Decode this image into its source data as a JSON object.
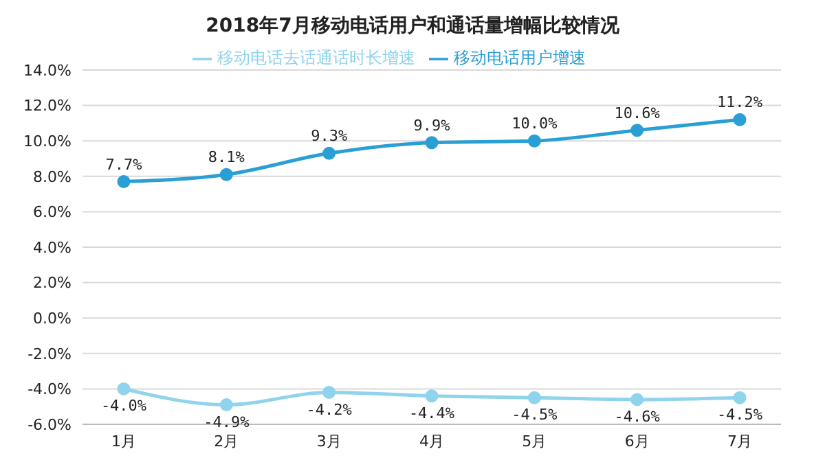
{
  "chart_data": {
    "type": "line",
    "title": "2018年7月移动电话用户和通话量增幅比较情况",
    "categories": [
      "1月",
      "2月",
      "3月",
      "4月",
      "5月",
      "6月",
      "7月"
    ],
    "series": [
      {
        "name": "移动电话去话通话时长增速",
        "color": "#8fd3ec",
        "values": [
          -4.0,
          -4.9,
          -4.2,
          -4.4,
          -4.5,
          -4.6,
          -4.5
        ],
        "value_labels": [
          "-4.0%",
          "-4.9%",
          "-4.2%",
          "-4.4%",
          "-4.5%",
          "-4.6%",
          "-4.5%"
        ]
      },
      {
        "name": "移动电话用户增速",
        "color": "#2a9fd6",
        "values": [
          7.7,
          8.1,
          9.3,
          9.9,
          10.0,
          10.6,
          11.2
        ],
        "value_labels": [
          "7.7%",
          "8.1%",
          "9.3%",
          "9.9%",
          "10.0%",
          "10.6%",
          "11.2%"
        ]
      }
    ],
    "ylim": [
      -6,
      14
    ],
    "yticks": [
      {
        "value": -6,
        "label": "-6.0%"
      },
      {
        "value": -4,
        "label": "-4.0%"
      },
      {
        "value": -2,
        "label": "-2.0%"
      },
      {
        "value": 0,
        "label": "0.0%"
      },
      {
        "value": 2,
        "label": "2.0%"
      },
      {
        "value": 4,
        "label": "4.0%"
      },
      {
        "value": 6,
        "label": "6.0%"
      },
      {
        "value": 8,
        "label": "8.0%"
      },
      {
        "value": 10,
        "label": "10.0%"
      },
      {
        "value": 12,
        "label": "12.0%"
      },
      {
        "value": 14,
        "label": "14.0%"
      }
    ],
    "grid": "y",
    "legend": "top",
    "marker": "circle",
    "line_style": "solid"
  }
}
